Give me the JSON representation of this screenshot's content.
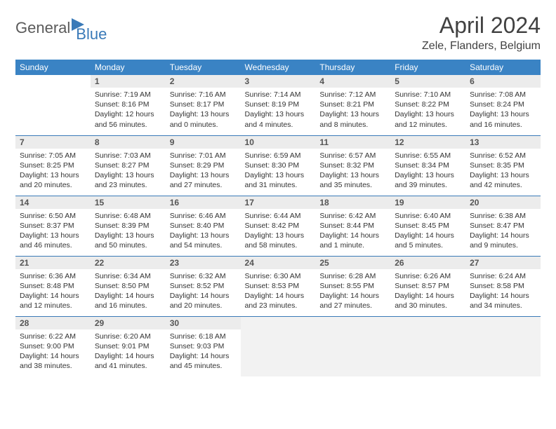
{
  "brand": {
    "part1": "General",
    "part2": "Blue"
  },
  "title": "April 2024",
  "location": "Zele, Flanders, Belgium",
  "colors": {
    "header_bg": "#3a83c4",
    "header_fg": "#ffffff",
    "divider": "#3a7ab8",
    "daynum_bg": "#ececec",
    "trailing_bg": "#f2f2f2",
    "text": "#333333"
  },
  "typography": {
    "title_size": 32,
    "location_size": 16,
    "header_size": 12,
    "body_size": 10.5
  },
  "weekdays": [
    "Sunday",
    "Monday",
    "Tuesday",
    "Wednesday",
    "Thursday",
    "Friday",
    "Saturday"
  ],
  "weeks": [
    [
      {
        "n": "",
        "sr": "",
        "ss": "",
        "dl": "",
        "empty": true
      },
      {
        "n": "1",
        "sr": "Sunrise: 7:19 AM",
        "ss": "Sunset: 8:16 PM",
        "dl": "Daylight: 12 hours and 56 minutes."
      },
      {
        "n": "2",
        "sr": "Sunrise: 7:16 AM",
        "ss": "Sunset: 8:17 PM",
        "dl": "Daylight: 13 hours and 0 minutes."
      },
      {
        "n": "3",
        "sr": "Sunrise: 7:14 AM",
        "ss": "Sunset: 8:19 PM",
        "dl": "Daylight: 13 hours and 4 minutes."
      },
      {
        "n": "4",
        "sr": "Sunrise: 7:12 AM",
        "ss": "Sunset: 8:21 PM",
        "dl": "Daylight: 13 hours and 8 minutes."
      },
      {
        "n": "5",
        "sr": "Sunrise: 7:10 AM",
        "ss": "Sunset: 8:22 PM",
        "dl": "Daylight: 13 hours and 12 minutes."
      },
      {
        "n": "6",
        "sr": "Sunrise: 7:08 AM",
        "ss": "Sunset: 8:24 PM",
        "dl": "Daylight: 13 hours and 16 minutes."
      }
    ],
    [
      {
        "n": "7",
        "sr": "Sunrise: 7:05 AM",
        "ss": "Sunset: 8:25 PM",
        "dl": "Daylight: 13 hours and 20 minutes."
      },
      {
        "n": "8",
        "sr": "Sunrise: 7:03 AM",
        "ss": "Sunset: 8:27 PM",
        "dl": "Daylight: 13 hours and 23 minutes."
      },
      {
        "n": "9",
        "sr": "Sunrise: 7:01 AM",
        "ss": "Sunset: 8:29 PM",
        "dl": "Daylight: 13 hours and 27 minutes."
      },
      {
        "n": "10",
        "sr": "Sunrise: 6:59 AM",
        "ss": "Sunset: 8:30 PM",
        "dl": "Daylight: 13 hours and 31 minutes."
      },
      {
        "n": "11",
        "sr": "Sunrise: 6:57 AM",
        "ss": "Sunset: 8:32 PM",
        "dl": "Daylight: 13 hours and 35 minutes."
      },
      {
        "n": "12",
        "sr": "Sunrise: 6:55 AM",
        "ss": "Sunset: 8:34 PM",
        "dl": "Daylight: 13 hours and 39 minutes."
      },
      {
        "n": "13",
        "sr": "Sunrise: 6:52 AM",
        "ss": "Sunset: 8:35 PM",
        "dl": "Daylight: 13 hours and 42 minutes."
      }
    ],
    [
      {
        "n": "14",
        "sr": "Sunrise: 6:50 AM",
        "ss": "Sunset: 8:37 PM",
        "dl": "Daylight: 13 hours and 46 minutes."
      },
      {
        "n": "15",
        "sr": "Sunrise: 6:48 AM",
        "ss": "Sunset: 8:39 PM",
        "dl": "Daylight: 13 hours and 50 minutes."
      },
      {
        "n": "16",
        "sr": "Sunrise: 6:46 AM",
        "ss": "Sunset: 8:40 PM",
        "dl": "Daylight: 13 hours and 54 minutes."
      },
      {
        "n": "17",
        "sr": "Sunrise: 6:44 AM",
        "ss": "Sunset: 8:42 PM",
        "dl": "Daylight: 13 hours and 58 minutes."
      },
      {
        "n": "18",
        "sr": "Sunrise: 6:42 AM",
        "ss": "Sunset: 8:44 PM",
        "dl": "Daylight: 14 hours and 1 minute."
      },
      {
        "n": "19",
        "sr": "Sunrise: 6:40 AM",
        "ss": "Sunset: 8:45 PM",
        "dl": "Daylight: 14 hours and 5 minutes."
      },
      {
        "n": "20",
        "sr": "Sunrise: 6:38 AM",
        "ss": "Sunset: 8:47 PM",
        "dl": "Daylight: 14 hours and 9 minutes."
      }
    ],
    [
      {
        "n": "21",
        "sr": "Sunrise: 6:36 AM",
        "ss": "Sunset: 8:48 PM",
        "dl": "Daylight: 14 hours and 12 minutes."
      },
      {
        "n": "22",
        "sr": "Sunrise: 6:34 AM",
        "ss": "Sunset: 8:50 PM",
        "dl": "Daylight: 14 hours and 16 minutes."
      },
      {
        "n": "23",
        "sr": "Sunrise: 6:32 AM",
        "ss": "Sunset: 8:52 PM",
        "dl": "Daylight: 14 hours and 20 minutes."
      },
      {
        "n": "24",
        "sr": "Sunrise: 6:30 AM",
        "ss": "Sunset: 8:53 PM",
        "dl": "Daylight: 14 hours and 23 minutes."
      },
      {
        "n": "25",
        "sr": "Sunrise: 6:28 AM",
        "ss": "Sunset: 8:55 PM",
        "dl": "Daylight: 14 hours and 27 minutes."
      },
      {
        "n": "26",
        "sr": "Sunrise: 6:26 AM",
        "ss": "Sunset: 8:57 PM",
        "dl": "Daylight: 14 hours and 30 minutes."
      },
      {
        "n": "27",
        "sr": "Sunrise: 6:24 AM",
        "ss": "Sunset: 8:58 PM",
        "dl": "Daylight: 14 hours and 34 minutes."
      }
    ],
    [
      {
        "n": "28",
        "sr": "Sunrise: 6:22 AM",
        "ss": "Sunset: 9:00 PM",
        "dl": "Daylight: 14 hours and 38 minutes."
      },
      {
        "n": "29",
        "sr": "Sunrise: 6:20 AM",
        "ss": "Sunset: 9:01 PM",
        "dl": "Daylight: 14 hours and 41 minutes."
      },
      {
        "n": "30",
        "sr": "Sunrise: 6:18 AM",
        "ss": "Sunset: 9:03 PM",
        "dl": "Daylight: 14 hours and 45 minutes."
      },
      {
        "n": "",
        "sr": "",
        "ss": "",
        "dl": "",
        "trailing": true
      },
      {
        "n": "",
        "sr": "",
        "ss": "",
        "dl": "",
        "trailing": true
      },
      {
        "n": "",
        "sr": "",
        "ss": "",
        "dl": "",
        "trailing": true
      },
      {
        "n": "",
        "sr": "",
        "ss": "",
        "dl": "",
        "trailing": true
      }
    ]
  ]
}
